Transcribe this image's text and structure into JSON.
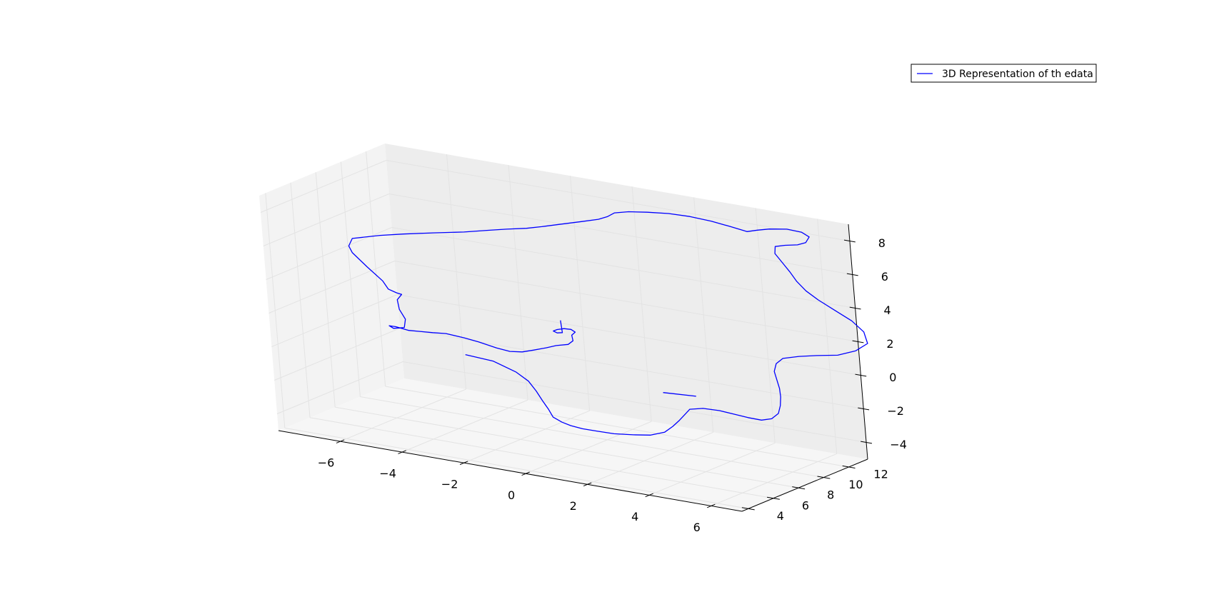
{
  "chart_data": {
    "type": "line3d",
    "legend": {
      "label": "3D Representation of th edata",
      "placement": "upper-right"
    },
    "series": [
      {
        "name": "3D Representation of th edata",
        "color": "#0000ff",
        "points": [
          [
            -1.85,
            3.95,
            1.36
          ],
          [
            -1.1,
            4.3,
            1.1
          ],
          [
            -0.55,
            4.7,
            0.5
          ],
          [
            -0.3,
            5.0,
            -0.05
          ],
          [
            -0.2,
            5.3,
            -0.7
          ],
          [
            -0.15,
            5.6,
            -1.35
          ],
          [
            -0.1,
            5.9,
            -1.95
          ],
          [
            -0.1,
            6.2,
            -2.5
          ],
          [
            0.05,
            6.5,
            -2.85
          ],
          [
            0.2,
            6.8,
            -3.1
          ],
          [
            0.45,
            7.1,
            -3.3
          ],
          [
            0.8,
            7.35,
            -3.4
          ],
          [
            1.3,
            7.5,
            -3.45
          ],
          [
            1.85,
            7.7,
            -3.4
          ],
          [
            2.35,
            7.85,
            -3.3
          ],
          [
            2.75,
            8.0,
            -3.05
          ],
          [
            2.95,
            8.2,
            -2.7
          ],
          [
            3.1,
            8.4,
            -2.35
          ],
          [
            3.2,
            8.6,
            -2.05
          ],
          [
            3.3,
            8.8,
            -1.75
          ],
          [
            3.65,
            9.0,
            -1.65
          ],
          [
            4.1,
            9.2,
            -1.7
          ],
          [
            4.5,
            9.4,
            -1.85
          ],
          [
            4.85,
            9.6,
            -2.0
          ],
          [
            5.2,
            9.8,
            -2.1
          ],
          [
            5.45,
            10.0,
            -2.0
          ],
          [
            5.6,
            10.2,
            -1.7
          ],
          [
            5.6,
            10.4,
            -1.3
          ],
          [
            5.55,
            10.6,
            -0.85
          ],
          [
            5.45,
            10.8,
            -0.45
          ],
          [
            5.3,
            11.0,
            -0.05
          ],
          [
            5.15,
            11.2,
            0.35
          ],
          [
            5.15,
            11.4,
            0.75
          ],
          [
            5.3,
            11.6,
            1.05
          ],
          [
            5.75,
            11.8,
            1.25
          ],
          [
            6.25,
            12.0,
            1.4
          ],
          [
            6.85,
            12.2,
            1.55
          ],
          [
            7.35,
            12.45,
            1.9
          ],
          [
            7.65,
            12.7,
            2.35
          ],
          [
            7.45,
            12.95,
            2.9
          ],
          [
            7.0,
            13.15,
            3.35
          ],
          [
            6.4,
            13.3,
            3.75
          ],
          [
            5.85,
            13.4,
            4.15
          ],
          [
            5.45,
            13.45,
            4.55
          ],
          [
            5.15,
            13.5,
            5.0
          ],
          [
            4.95,
            13.5,
            5.5
          ],
          [
            4.75,
            13.45,
            6.0
          ],
          [
            4.55,
            13.4,
            6.5
          ],
          [
            4.6,
            13.35,
            6.95
          ],
          [
            4.95,
            13.3,
            7.15
          ],
          [
            5.4,
            13.2,
            7.35
          ],
          [
            5.7,
            13.15,
            7.6
          ],
          [
            5.85,
            13.1,
            8.0
          ],
          [
            5.65,
            13.0,
            8.25
          ],
          [
            5.2,
            12.95,
            8.3
          ],
          [
            4.65,
            12.9,
            8.15
          ],
          [
            4.25,
            12.9,
            7.95
          ],
          [
            3.95,
            12.8,
            7.8
          ],
          [
            3.45,
            12.75,
            7.95
          ],
          [
            2.85,
            12.7,
            8.1
          ],
          [
            2.2,
            12.6,
            8.2
          ],
          [
            1.55,
            12.5,
            8.2
          ],
          [
            0.9,
            12.4,
            8.1
          ],
          [
            0.35,
            12.25,
            8.0
          ],
          [
            -0.05,
            12.1,
            7.85
          ],
          [
            -0.2,
            11.9,
            7.65
          ],
          [
            -0.45,
            11.75,
            7.45
          ],
          [
            -0.95,
            11.6,
            7.2
          ],
          [
            -1.5,
            11.35,
            6.95
          ],
          [
            -2.05,
            11.1,
            6.7
          ],
          [
            -2.45,
            10.85,
            6.55
          ],
          [
            -3.0,
            10.6,
            6.4
          ],
          [
            -3.5,
            10.35,
            6.25
          ],
          [
            -4.15,
            10.0,
            6.05
          ],
          [
            -5.0,
            9.6,
            5.85
          ],
          [
            -5.8,
            9.2,
            5.65
          ],
          [
            -6.4,
            8.8,
            5.5
          ],
          [
            -7.15,
            8.4,
            5.2
          ],
          [
            -7.2,
            8.2,
            4.8
          ],
          [
            -7.0,
            7.95,
            4.55
          ],
          [
            -6.4,
            7.6,
            4.0
          ],
          [
            -5.8,
            7.3,
            3.45
          ],
          [
            -5.55,
            7.1,
            3.1
          ],
          [
            -5.2,
            6.9,
            3.05
          ],
          [
            -5.0,
            6.8,
            3.05
          ],
          [
            -5.05,
            6.55,
            2.8
          ],
          [
            -4.9,
            6.3,
            2.35
          ],
          [
            -4.6,
            6.0,
            1.95
          ],
          [
            -4.55,
            5.75,
            1.55
          ],
          [
            -4.8,
            5.5,
            1.5
          ],
          [
            -4.85,
            5.3,
            1.7
          ],
          [
            -4.55,
            5.1,
            1.8
          ],
          [
            -4.05,
            4.9,
            1.8
          ],
          [
            -3.6,
            4.7,
            1.95
          ],
          [
            -3.1,
            4.5,
            2.1
          ],
          [
            -2.6,
            4.35,
            2.25
          ],
          [
            -1.95,
            4.2,
            2.25
          ],
          [
            -1.45,
            4.1,
            2.2
          ],
          [
            -0.85,
            4.05,
            2.05
          ],
          [
            -0.4,
            4.0,
            2.0
          ],
          [
            0.0,
            4.0,
            2.1
          ],
          [
            0.35,
            4.05,
            2.3
          ],
          [
            0.75,
            4.1,
            2.55
          ],
          [
            1.05,
            4.2,
            2.75
          ],
          [
            1.4,
            4.3,
            2.9
          ],
          [
            1.55,
            4.35,
            3.15
          ],
          [
            1.5,
            4.4,
            3.45
          ],
          [
            1.6,
            4.45,
            3.65
          ],
          [
            1.45,
            4.5,
            3.75
          ],
          [
            1.2,
            4.55,
            3.7
          ],
          [
            0.95,
            4.6,
            3.55
          ],
          [
            0.8,
            4.65,
            3.4
          ],
          [
            0.9,
            4.7,
            3.3
          ],
          [
            1.05,
            4.75,
            3.35
          ],
          [
            1.0,
            4.8,
            4.05
          ]
        ]
      },
      {
        "name": "",
        "color": "#0000ff",
        "points": [
          [
            2.3,
            9.2,
            -1.2
          ],
          [
            3.35,
            9.25,
            -1.1
          ]
        ]
      }
    ],
    "axes": {
      "x": {
        "range": [
          -8,
          7
        ],
        "ticks": [
          -6,
          -4,
          -2,
          0,
          2,
          4,
          6
        ],
        "tick_labels": [
          "−6",
          "−4",
          "−2",
          "0",
          "2",
          "4",
          "6"
        ]
      },
      "y": {
        "range": [
          3.5,
          13.5
        ],
        "ticks": [
          4,
          6,
          8,
          10,
          12
        ],
        "tick_labels": [
          "4",
          "6",
          "8",
          "10",
          "12"
        ]
      },
      "z": {
        "range": [
          -5,
          9
        ],
        "ticks": [
          -4,
          -2,
          0,
          2,
          4,
          6,
          8
        ],
        "tick_labels": [
          "−4",
          "−2",
          "0",
          "2",
          "4",
          "6",
          "8"
        ]
      }
    },
    "grid": true,
    "pane_colors": {
      "left": "#f3f3f3",
      "back": "#ededed",
      "floor": "#f6f6f6"
    },
    "grid_color": "#e3e3e3"
  }
}
